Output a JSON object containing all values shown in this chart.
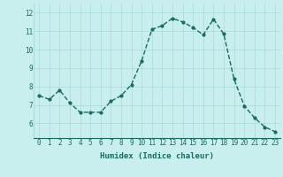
{
  "x": [
    0,
    1,
    2,
    3,
    4,
    5,
    6,
    7,
    8,
    9,
    10,
    11,
    12,
    13,
    14,
    15,
    16,
    17,
    18,
    19,
    20,
    21,
    22,
    23
  ],
  "y": [
    7.5,
    7.3,
    7.8,
    7.1,
    6.6,
    6.6,
    6.6,
    7.2,
    7.5,
    8.1,
    9.4,
    11.1,
    11.3,
    11.7,
    11.5,
    11.2,
    10.8,
    11.65,
    10.85,
    8.4,
    6.95,
    6.3,
    5.8,
    5.55
  ],
  "line_color": "#1a6b5e",
  "marker": "o",
  "markersize": 2.0,
  "linewidth": 1.0,
  "bg_color": "#c8eeee",
  "grid_color": "#aedddd",
  "xlabel": "Humidex (Indice chaleur)",
  "xlabel_fontsize": 6.5,
  "tick_fontsize": 5.5,
  "ylim": [
    5.2,
    12.5
  ],
  "xlim": [
    -0.5,
    23.5
  ],
  "yticks": [
    6,
    7,
    8,
    9,
    10,
    11,
    12
  ],
  "xticks": [
    0,
    1,
    2,
    3,
    4,
    5,
    6,
    7,
    8,
    9,
    10,
    11,
    12,
    13,
    14,
    15,
    16,
    17,
    18,
    19,
    20,
    21,
    22,
    23
  ]
}
